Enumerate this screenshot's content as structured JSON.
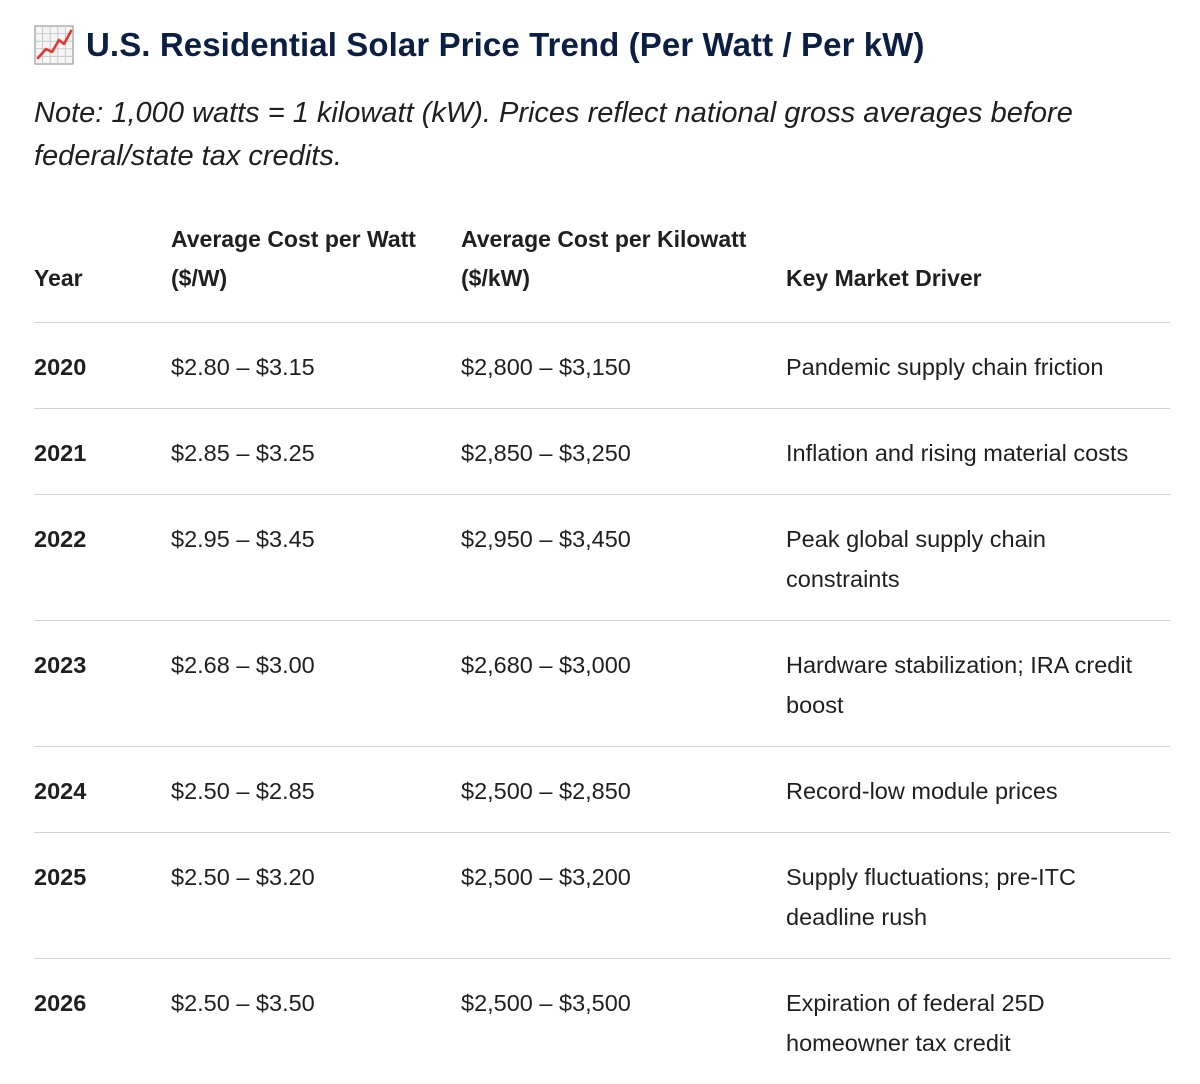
{
  "header": {
    "icon": "chart-increasing-icon",
    "title": "U.S. Residential Solar Price Trend (Per Watt / Per kW)"
  },
  "note": "Note: 1,000 watts = 1 kilowatt (kW). Prices reflect national gross averages before federal/state tax credits.",
  "table": {
    "headers": [
      "Year",
      "Average Cost per Watt ($/W)",
      "Average Cost per Kilowatt ($/kW)",
      "Key Market Driver"
    ],
    "rows": [
      {
        "year": "2020",
        "per_watt": "$2.80 – $3.15",
        "per_kw": "$2,800 – $3,150",
        "driver": "Pandemic supply chain friction"
      },
      {
        "year": "2021",
        "per_watt": "$2.85 – $3.25",
        "per_kw": "$2,850 – $3,250",
        "driver": "Inflation and rising material costs"
      },
      {
        "year": "2022",
        "per_watt": "$2.95 – $3.45",
        "per_kw": "$2,950 – $3,450",
        "driver": "Peak global supply chain constraints"
      },
      {
        "year": "2023",
        "per_watt": "$2.68 – $3.00",
        "per_kw": "$2,680 – $3,000",
        "driver": "Hardware stabilization; IRA credit boost"
      },
      {
        "year": "2024",
        "per_watt": "$2.50 – $2.85",
        "per_kw": "$2,500 – $2,850",
        "driver": "Record-low module prices"
      },
      {
        "year": "2025",
        "per_watt": "$2.50 – $3.20",
        "per_kw": "$2,500 – $3,200",
        "driver": "Supply fluctuations; pre-ITC deadline rush"
      },
      {
        "year": "2026",
        "per_watt": "$2.50 – $3.50",
        "per_kw": "$2,500 – $3,500",
        "driver": "Expiration of federal 25D homeowner tax credit"
      }
    ]
  }
}
